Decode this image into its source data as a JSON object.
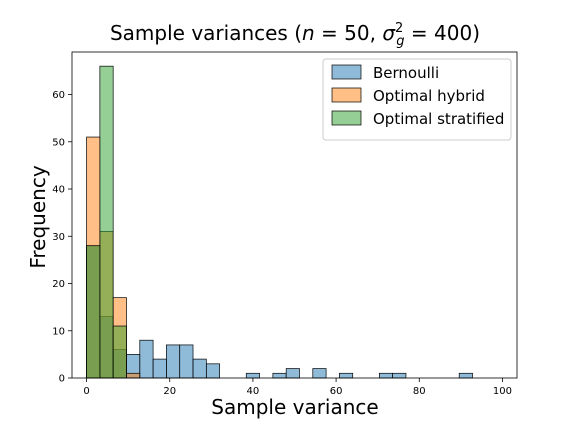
{
  "chart_data": {
    "type": "histogram",
    "title": "Sample variances (n = 50, σ² = 400)",
    "title_parts": {
      "prefix": "Sample variances (",
      "n_var": "n",
      "n_eq": " = 50, ",
      "sigma": "σ",
      "sigma_sub": "g",
      "sigma_sup": "2",
      "suffix": " = 400)"
    },
    "xlabel": "Sample variance",
    "ylabel": "Frequency",
    "xlim": [
      -3.5,
      103.5
    ],
    "ylim": [
      0,
      69
    ],
    "xticks": [
      0,
      20,
      40,
      60,
      80,
      100
    ],
    "yticks": [
      0,
      10,
      20,
      30,
      40,
      50,
      60
    ],
    "legend_position": "top-right",
    "series": [
      {
        "name": "Bernoulli",
        "color": "#1f77b4",
        "bins": [
          {
            "x0": 0,
            "x1": 3.2,
            "count": 28
          },
          {
            "x0": 3.2,
            "x1": 6.4,
            "count": 13
          },
          {
            "x0": 6.4,
            "x1": 9.6,
            "count": 6
          },
          {
            "x0": 9.6,
            "x1": 12.8,
            "count": 5
          },
          {
            "x0": 12.8,
            "x1": 16.0,
            "count": 8
          },
          {
            "x0": 16.0,
            "x1": 19.2,
            "count": 4
          },
          {
            "x0": 19.2,
            "x1": 22.4,
            "count": 7
          },
          {
            "x0": 22.4,
            "x1": 25.6,
            "count": 7
          },
          {
            "x0": 25.6,
            "x1": 28.8,
            "count": 4
          },
          {
            "x0": 28.8,
            "x1": 32.0,
            "count": 3
          },
          {
            "x0": 38.4,
            "x1": 41.6,
            "count": 1
          },
          {
            "x0": 44.8,
            "x1": 48.0,
            "count": 1
          },
          {
            "x0": 48.0,
            "x1": 51.2,
            "count": 2
          },
          {
            "x0": 54.4,
            "x1": 57.6,
            "count": 2
          },
          {
            "x0": 60.8,
            "x1": 64.0,
            "count": 1
          },
          {
            "x0": 70.4,
            "x1": 73.6,
            "count": 1
          },
          {
            "x0": 73.6,
            "x1": 76.8,
            "count": 1
          },
          {
            "x0": 89.6,
            "x1": 92.8,
            "count": 1
          }
        ]
      },
      {
        "name": "Optimal hybrid",
        "color": "#ff7f0e",
        "bins": [
          {
            "x0": 0,
            "x1": 3.2,
            "count": 51
          },
          {
            "x0": 3.2,
            "x1": 6.4,
            "count": 31
          },
          {
            "x0": 6.4,
            "x1": 9.6,
            "count": 17
          },
          {
            "x0": 9.6,
            "x1": 12.8,
            "count": 1
          }
        ]
      },
      {
        "name": "Optimal stratified",
        "color": "#2ca02c",
        "bins": [
          {
            "x0": 0,
            "x1": 3.2,
            "count": 28
          },
          {
            "x0": 3.2,
            "x1": 6.4,
            "count": 66
          },
          {
            "x0": 6.4,
            "x1": 9.6,
            "count": 11
          }
        ]
      }
    ]
  }
}
